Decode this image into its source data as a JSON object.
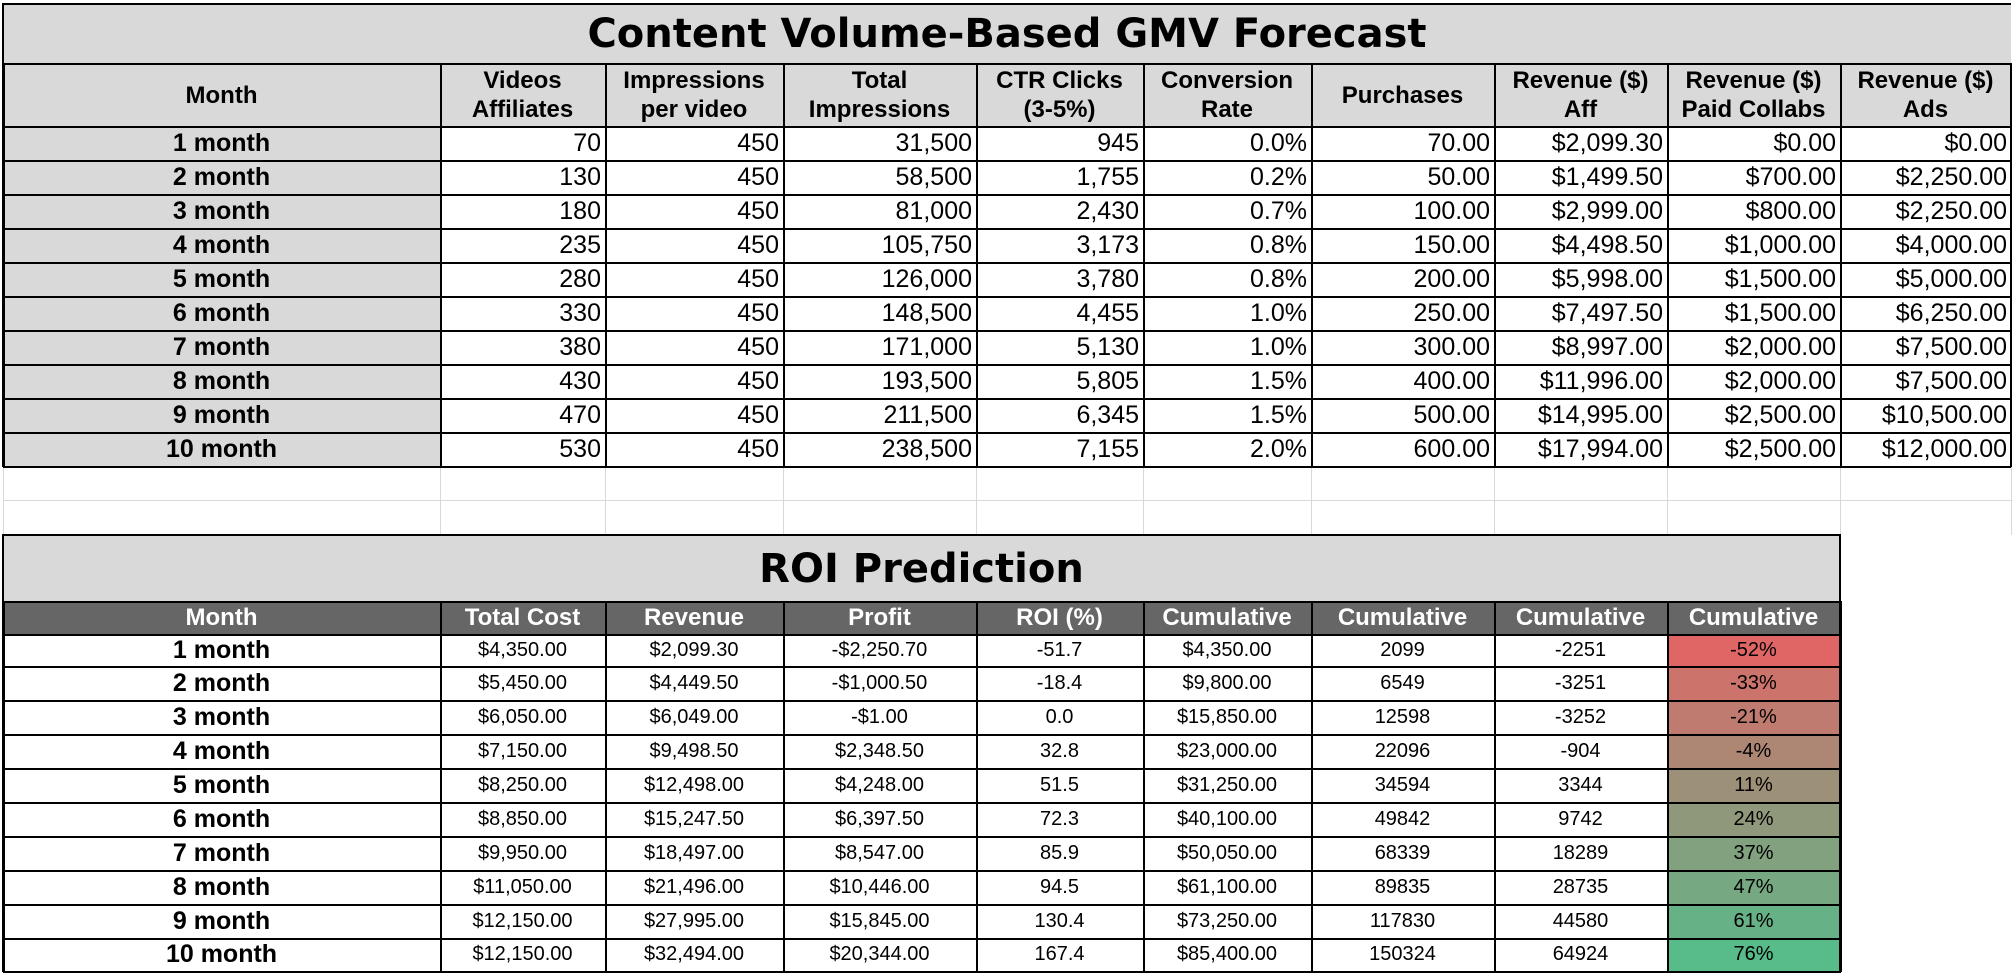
{
  "colors": {
    "header_gray": "#d9d9d9",
    "dark_header": "#666666",
    "roi_low": "#e06666",
    "roi_high": "#57bb8a"
  },
  "forecast": {
    "title": "Content Volume-Based GMV Forecast",
    "headers": [
      "Month",
      "Videos Affiliates",
      "Impressions per video",
      "Total Impressions",
      "CTR Clicks (3-5%)",
      "Conversion Rate",
      "Purchases",
      "Revenue ($) Aff",
      "Revenue ($) Paid Collabs",
      "Revenue ($) Ads"
    ],
    "header_lines": [
      [
        "Month"
      ],
      [
        "Videos",
        "Affiliates"
      ],
      [
        "Impressions",
        "per video"
      ],
      [
        "Total",
        "Impressions"
      ],
      [
        "CTR Clicks",
        "(3-5%)"
      ],
      [
        "Conversion",
        "Rate"
      ],
      [
        "Purchases"
      ],
      [
        "Revenue ($)",
        "Aff"
      ],
      [
        "Revenue ($)",
        "Paid Collabs"
      ],
      [
        "Revenue ($)",
        "Ads"
      ]
    ],
    "rows": [
      [
        "1 month",
        "70",
        "450",
        "31,500",
        "945",
        "0.0%",
        "70.00",
        "$2,099.30",
        "$0.00",
        "$0.00"
      ],
      [
        "2 month",
        "130",
        "450",
        "58,500",
        "1,755",
        "0.2%",
        "50.00",
        "$1,499.50",
        "$700.00",
        "$2,250.00"
      ],
      [
        "3 month",
        "180",
        "450",
        "81,000",
        "2,430",
        "0.7%",
        "100.00",
        "$2,999.00",
        "$800.00",
        "$2,250.00"
      ],
      [
        "4 month",
        "235",
        "450",
        "105,750",
        "3,173",
        "0.8%",
        "150.00",
        "$4,498.50",
        "$1,000.00",
        "$4,000.00"
      ],
      [
        "5 month",
        "280",
        "450",
        "126,000",
        "3,780",
        "0.8%",
        "200.00",
        "$5,998.00",
        "$1,500.00",
        "$5,000.00"
      ],
      [
        "6 month",
        "330",
        "450",
        "148,500",
        "4,455",
        "1.0%",
        "250.00",
        "$7,497.50",
        "$1,500.00",
        "$6,250.00"
      ],
      [
        "7 month",
        "380",
        "450",
        "171,000",
        "5,130",
        "1.0%",
        "300.00",
        "$8,997.00",
        "$2,000.00",
        "$7,500.00"
      ],
      [
        "8 month",
        "430",
        "450",
        "193,500",
        "5,805",
        "1.5%",
        "400.00",
        "$11,996.00",
        "$2,000.00",
        "$7,500.00"
      ],
      [
        "9 month",
        "470",
        "450",
        "211,500",
        "6,345",
        "1.5%",
        "500.00",
        "$14,995.00",
        "$2,500.00",
        "$10,500.00"
      ],
      [
        "10 month",
        "530",
        "450",
        "238,500",
        "7,155",
        "2.0%",
        "600.00",
        "$17,994.00",
        "$2,500.00",
        "$12,000.00"
      ]
    ]
  },
  "roi": {
    "title": "ROI Prediction",
    "headers": [
      "Month",
      "Total Cost",
      "Revenue",
      "Profit",
      "ROI (%)",
      "Cumulative",
      "Cumulative",
      "Cumulative",
      "Cumulative"
    ],
    "rows": [
      [
        "1 month",
        "$4,350.00",
        "$2,099.30",
        "-$2,250.70",
        "-51.7",
        "$4,350.00",
        "2099",
        "-2251",
        "-52%"
      ],
      [
        "2 month",
        "$5,450.00",
        "$4,449.50",
        "-$1,000.50",
        "-18.4",
        "$9,800.00",
        "6549",
        "-3251",
        "-33%"
      ],
      [
        "3 month",
        "$6,050.00",
        "$6,049.00",
        "-$1.00",
        "0.0",
        "$15,850.00",
        "12598",
        "-3252",
        "-21%"
      ],
      [
        "4 month",
        "$7,150.00",
        "$9,498.50",
        "$2,348.50",
        "32.8",
        "$23,000.00",
        "22096",
        "-904",
        "-4%"
      ],
      [
        "5 month",
        "$8,250.00",
        "$12,498.00",
        "$4,248.00",
        "51.5",
        "$31,250.00",
        "34594",
        "3344",
        "11%"
      ],
      [
        "6 month",
        "$8,850.00",
        "$15,247.50",
        "$6,397.50",
        "72.3",
        "$40,100.00",
        "49842",
        "9742",
        "24%"
      ],
      [
        "7 month",
        "$9,950.00",
        "$18,497.00",
        "$8,547.00",
        "85.9",
        "$50,050.00",
        "68339",
        "18289",
        "37%"
      ],
      [
        "8 month",
        "$11,050.00",
        "$21,496.00",
        "$10,446.00",
        "94.5",
        "$61,100.00",
        "89835",
        "28735",
        "47%"
      ],
      [
        "9 month",
        "$12,150.00",
        "$27,995.00",
        "$15,845.00",
        "130.4",
        "$73,250.00",
        "117830",
        "44580",
        "61%"
      ],
      [
        "10 month",
        "$12,150.00",
        "$32,494.00",
        "$20,344.00",
        "167.4",
        "$85,400.00",
        "150324",
        "64924",
        "76%"
      ]
    ],
    "cumulative_roi_values": [
      -52,
      -33,
      -21,
      -4,
      11,
      24,
      37,
      47,
      61,
      76
    ]
  }
}
